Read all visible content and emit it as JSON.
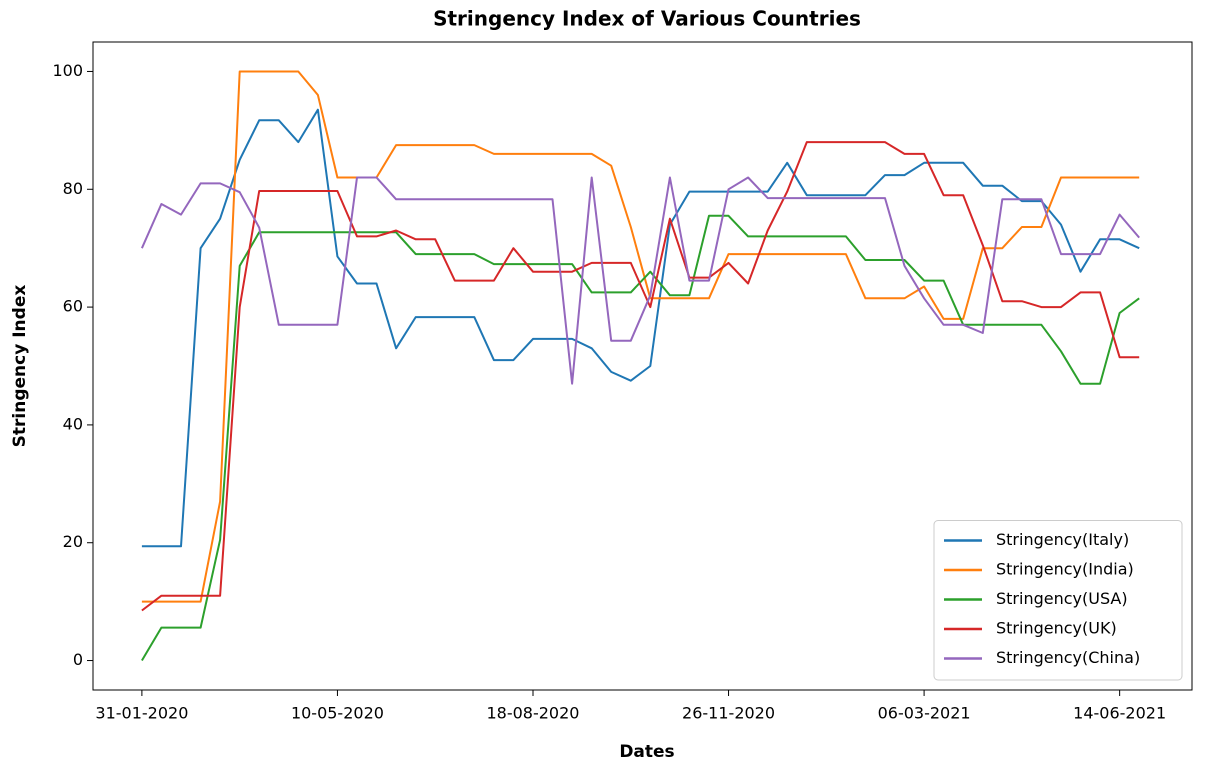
{
  "chart_data": {
    "type": "line",
    "title": "Stringency Index of Various Countries",
    "x_label": "Dates",
    "y_label": "Stringency Index",
    "x": [
      "31-01-2020",
      "10-02-2020",
      "20-02-2020",
      "01-03-2020",
      "11-03-2020",
      "21-03-2020",
      "31-03-2020",
      "10-04-2020",
      "20-04-2020",
      "30-04-2020",
      "10-05-2020",
      "20-05-2020",
      "30-05-2020",
      "09-06-2020",
      "19-06-2020",
      "29-06-2020",
      "09-07-2020",
      "19-07-2020",
      "29-07-2020",
      "08-08-2020",
      "18-08-2020",
      "28-08-2020",
      "07-09-2020",
      "17-09-2020",
      "27-09-2020",
      "07-10-2020",
      "17-10-2020",
      "27-10-2020",
      "06-11-2020",
      "16-11-2020",
      "26-11-2020",
      "06-12-2020",
      "16-12-2020",
      "26-12-2020",
      "05-01-2021",
      "15-01-2021",
      "25-01-2021",
      "04-02-2021",
      "14-02-2021",
      "24-02-2021",
      "06-03-2021",
      "16-03-2021",
      "26-03-2021",
      "05-04-2021",
      "15-04-2021",
      "25-04-2021",
      "05-05-2021",
      "15-05-2021",
      "25-05-2021",
      "04-06-2021",
      "14-06-2021",
      "24-06-2021"
    ],
    "series": [
      {
        "name": "Stringency(Italy)",
        "color": "#1f77b4",
        "values": [
          19.4,
          19.4,
          19.4,
          70,
          75,
          85,
          91.7,
          91.7,
          88,
          93.5,
          68.6,
          64,
          64,
          53,
          58.3,
          58.3,
          58.3,
          58.3,
          51,
          51,
          54.6,
          54.6,
          54.6,
          53,
          49,
          47.5,
          50,
          74,
          79.6,
          79.6,
          79.6,
          79.6,
          79.6,
          84.5,
          79,
          79,
          79,
          79,
          82.4,
          82.4,
          84.5,
          84.5,
          84.5,
          80.6,
          80.6,
          78,
          78,
          74,
          66,
          71.5,
          71.5,
          70
        ]
      },
      {
        "name": "Stringency(India)",
        "color": "#ff7f0e",
        "values": [
          10,
          10,
          10,
          10,
          27,
          100,
          100,
          100,
          100,
          96,
          82,
          82,
          82,
          87.5,
          87.5,
          87.5,
          87.5,
          87.5,
          86,
          86,
          86,
          86,
          86,
          86,
          84,
          73.6,
          61.5,
          61.5,
          61.5,
          61.5,
          69,
          69,
          69,
          69,
          69,
          69,
          69,
          61.5,
          61.5,
          61.5,
          63.5,
          58,
          58,
          70,
          70,
          73.6,
          73.6,
          82,
          82,
          82,
          82,
          82
        ]
      },
      {
        "name": "Stringency(USA)",
        "color": "#2ca02c",
        "values": [
          0,
          5.6,
          5.6,
          5.6,
          20.5,
          67,
          72.7,
          72.7,
          72.7,
          72.7,
          72.7,
          72.7,
          72.7,
          72.7,
          69,
          69,
          69,
          69,
          67.3,
          67.3,
          67.3,
          67.3,
          67.3,
          62.5,
          62.5,
          62.5,
          66,
          62,
          62,
          75.5,
          75.5,
          72,
          72,
          72,
          72,
          72,
          72,
          68,
          68,
          68,
          64.5,
          64.5,
          57,
          57,
          57,
          57,
          57,
          52.5,
          47,
          47,
          59,
          61.5
        ]
      },
      {
        "name": "Stringency(UK)",
        "color": "#d62728",
        "values": [
          8.5,
          11,
          11,
          11,
          11,
          60,
          79.7,
          79.7,
          79.7,
          79.7,
          79.7,
          72,
          72,
          73,
          71.5,
          71.5,
          64.5,
          64.5,
          64.5,
          70,
          66,
          66,
          66,
          67.5,
          67.5,
          67.5,
          60,
          75,
          65,
          65,
          67.5,
          64,
          73,
          79.6,
          88,
          88,
          88,
          88,
          88,
          86,
          86,
          79,
          79,
          70.5,
          61,
          61,
          60,
          60,
          62.5,
          62.5,
          51.5,
          51.5
        ]
      },
      {
        "name": "Stringency(China)",
        "color": "#9467bd",
        "values": [
          70,
          77.5,
          75.7,
          81,
          81,
          79.5,
          73.5,
          57,
          57,
          57,
          57,
          82,
          82,
          78.3,
          78.3,
          78.3,
          78.3,
          78.3,
          78.3,
          78.3,
          78.3,
          78.3,
          47,
          82,
          54.3,
          54.3,
          62,
          82,
          64.5,
          64.5,
          80,
          82,
          78.5,
          78.5,
          78.5,
          78.5,
          78.5,
          78.5,
          78.5,
          67,
          61.5,
          57,
          57,
          55.6,
          78.3,
          78.3,
          78.3,
          69,
          69,
          69,
          75.7,
          71.8
        ]
      }
    ],
    "xlim": [
      "06-01-2020",
      "21-07-2021"
    ],
    "xticks": [
      "31-01-2020",
      "10-05-2020",
      "18-08-2020",
      "26-11-2020",
      "06-03-2021",
      "14-06-2021"
    ],
    "ylim": [
      -5,
      105
    ],
    "yticks": [
      0,
      20,
      40,
      60,
      80,
      100
    ],
    "grid": false,
    "legend": "lower right"
  }
}
